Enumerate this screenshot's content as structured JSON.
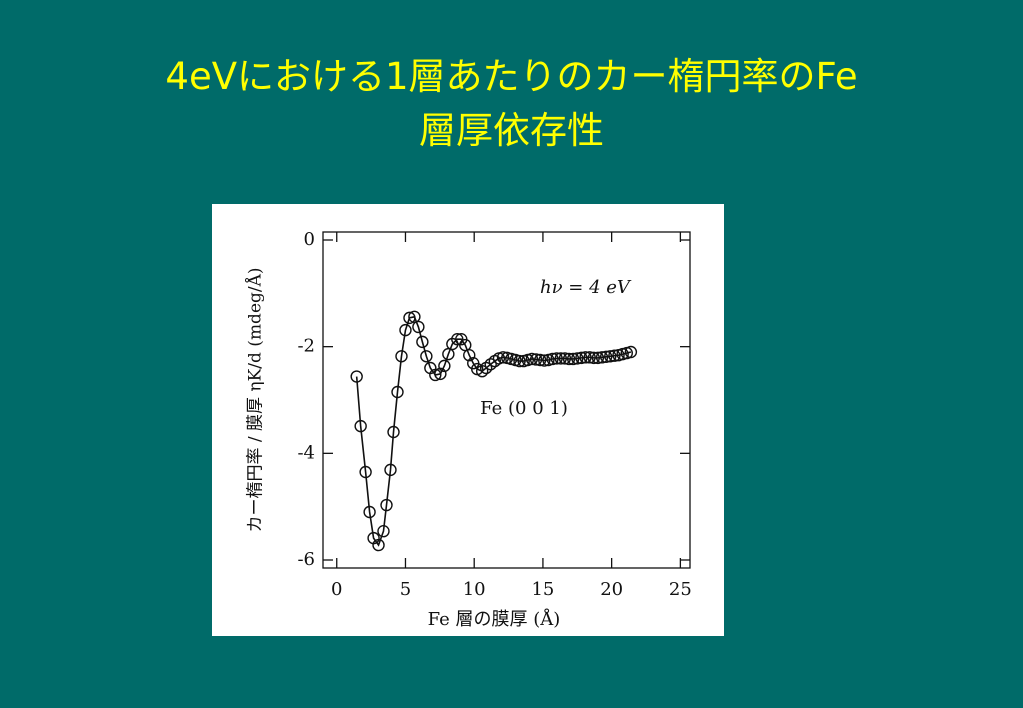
{
  "slide": {
    "title_lines": [
      "4eVにおける1層あたりのカー楕円率のFe",
      "層厚依存性"
    ]
  },
  "chart_data": {
    "type": "scatter",
    "x_label": "Fe 層の膜厚 (Å)",
    "y_label": "カー楕円率 / 膜厚 ηK/d (mdeg/Å)",
    "annotations": [
      "hν = 4 eV",
      "Fe (0 0 1)"
    ],
    "xlim": [
      -1,
      25.7
    ],
    "ylim": [
      -6.15,
      0.15
    ],
    "xticks": [
      0,
      5,
      10,
      15,
      20,
      25
    ],
    "yticks": [
      0,
      -2,
      -4,
      -6
    ],
    "series": [
      {
        "color": "#111111",
        "x": [
          1.45,
          1.74,
          2.1,
          2.39,
          2.68,
          3.04,
          3.4,
          3.62,
          3.91,
          4.13,
          4.42,
          4.71,
          5.0,
          5.29,
          5.65,
          5.94,
          6.23,
          6.52,
          6.81,
          7.17,
          7.54,
          7.83,
          8.12,
          8.41,
          8.77,
          9.06,
          9.35,
          9.64,
          9.93,
          10.22,
          10.58,
          10.87,
          11.2,
          11.5,
          11.8,
          12.1,
          12.4,
          12.7,
          13.0,
          13.3,
          13.6,
          13.9,
          14.2,
          14.5,
          14.8,
          15.1,
          15.4,
          15.7,
          16.0,
          16.3,
          16.6,
          16.9,
          17.2,
          17.5,
          17.8,
          18.1,
          18.4,
          18.7,
          19.0,
          19.3,
          19.6,
          19.9,
          20.2,
          20.5,
          20.8,
          21.1,
          21.4
        ],
        "values": [
          -2.56,
          -3.49,
          -4.35,
          -5.1,
          -5.59,
          -5.72,
          -5.46,
          -4.97,
          -4.31,
          -3.6,
          -2.85,
          -2.18,
          -1.69,
          -1.46,
          -1.44,
          -1.63,
          -1.91,
          -2.18,
          -2.4,
          -2.53,
          -2.51,
          -2.36,
          -2.14,
          -1.95,
          -1.86,
          -1.86,
          -1.97,
          -2.16,
          -2.31,
          -2.42,
          -2.46,
          -2.4,
          -2.33,
          -2.27,
          -2.22,
          -2.2,
          -2.21,
          -2.23,
          -2.25,
          -2.27,
          -2.27,
          -2.25,
          -2.23,
          -2.24,
          -2.25,
          -2.26,
          -2.25,
          -2.23,
          -2.22,
          -2.22,
          -2.22,
          -2.23,
          -2.23,
          -2.22,
          -2.21,
          -2.2,
          -2.2,
          -2.21,
          -2.21,
          -2.2,
          -2.19,
          -2.18,
          -2.17,
          -2.16,
          -2.14,
          -2.12,
          -2.1
        ]
      }
    ]
  }
}
